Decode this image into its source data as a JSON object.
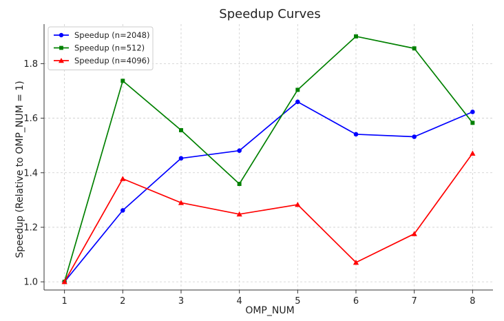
{
  "chart_data": {
    "type": "line",
    "title": "Speedup Curves",
    "xlabel": "OMP_NUM",
    "ylabel": "Speedup (Relative to OMP_NUM = 1)",
    "x": [
      1,
      2,
      3,
      4,
      5,
      6,
      7,
      8
    ],
    "xlim": [
      0.65,
      8.35
    ],
    "ylim": [
      0.97,
      1.945
    ],
    "xticks": [
      "1",
      "2",
      "3",
      "4",
      "5",
      "6",
      "7",
      "8"
    ],
    "yticks": [
      "1.0",
      "1.2",
      "1.4",
      "1.6",
      "1.8"
    ],
    "grid": true,
    "legend_position": "top-left",
    "series": [
      {
        "name": "Speedup (n=2048)",
        "color": "#0000ff",
        "marker": "circle",
        "values": [
          1.0,
          1.262,
          1.453,
          1.481,
          1.66,
          1.541,
          1.532,
          1.623
        ]
      },
      {
        "name": "Speedup (n=512)",
        "color": "#008000",
        "marker": "square",
        "values": [
          1.0,
          1.737,
          1.556,
          1.359,
          1.704,
          1.9,
          1.856,
          1.583
        ]
      },
      {
        "name": "Speedup (n=4096)",
        "color": "#ff0000",
        "marker": "triangle",
        "values": [
          1.0,
          1.378,
          1.29,
          1.248,
          1.283,
          1.071,
          1.176,
          1.471
        ]
      }
    ]
  }
}
